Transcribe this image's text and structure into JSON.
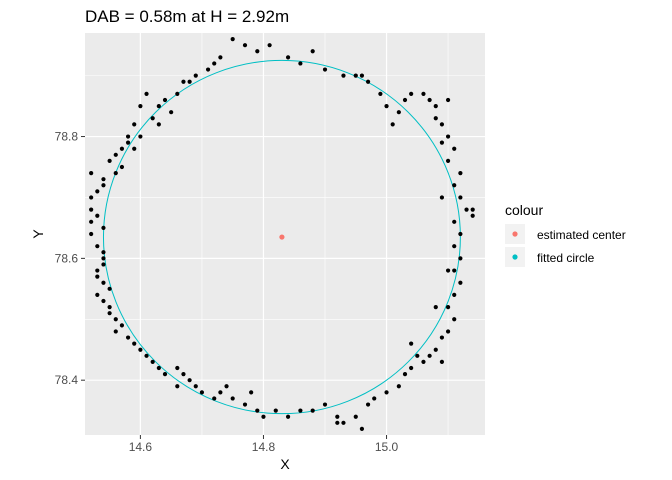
{
  "chart_data": {
    "type": "scatter",
    "title": "DAB = 0.58m at H = 2.92m",
    "xlabel": "X",
    "ylabel": "Y",
    "xlim": [
      14.51,
      15.16
    ],
    "ylim": [
      78.31,
      78.97
    ],
    "x_ticks": [
      {
        "value": 14.6,
        "label": "14.6"
      },
      {
        "value": 14.8,
        "label": "14.8"
      },
      {
        "value": 15.0,
        "label": "15.0"
      }
    ],
    "y_ticks": [
      {
        "value": 78.4,
        "label": "78.4"
      },
      {
        "value": 78.6,
        "label": "78.6"
      },
      {
        "value": 78.8,
        "label": "78.8"
      }
    ],
    "grid": true,
    "legend": {
      "title": "colour",
      "position": "right",
      "entries": [
        {
          "label": "estimated center",
          "color": "#F8766D"
        },
        {
          "label": "fitted circle",
          "color": "#00BFC4"
        }
      ]
    },
    "fitted_circle": {
      "center_x": 14.83,
      "center_y": 78.635,
      "radius": 0.29,
      "color": "#00BFC4"
    },
    "estimated_center": {
      "x": 14.83,
      "y": 78.635,
      "color": "#F8766D"
    },
    "points_color": "#000000",
    "points": [
      [
        14.75,
        78.96
      ],
      [
        14.77,
        78.95
      ],
      [
        14.79,
        78.94
      ],
      [
        14.81,
        78.95
      ],
      [
        14.84,
        78.93
      ],
      [
        14.86,
        78.92
      ],
      [
        14.88,
        78.94
      ],
      [
        14.9,
        78.91
      ],
      [
        14.93,
        78.9
      ],
      [
        14.95,
        78.9
      ],
      [
        14.73,
        78.93
      ],
      [
        14.72,
        78.92
      ],
      [
        14.71,
        78.91
      ],
      [
        14.69,
        78.9
      ],
      [
        14.68,
        78.89
      ],
      [
        14.67,
        78.89
      ],
      [
        14.66,
        78.87
      ],
      [
        14.64,
        78.86
      ],
      [
        14.63,
        78.85
      ],
      [
        14.65,
        78.84
      ],
      [
        14.62,
        78.83
      ],
      [
        14.61,
        78.87
      ],
      [
        14.6,
        78.85
      ],
      [
        14.59,
        78.82
      ],
      [
        14.58,
        78.8
      ],
      [
        14.58,
        78.79
      ],
      [
        14.57,
        78.78
      ],
      [
        14.56,
        78.77
      ],
      [
        14.55,
        78.76
      ],
      [
        14.56,
        78.74
      ],
      [
        14.54,
        78.73
      ],
      [
        14.54,
        78.72
      ],
      [
        14.53,
        78.71
      ],
      [
        14.52,
        78.74
      ],
      [
        14.52,
        78.7
      ],
      [
        14.52,
        78.68
      ],
      [
        14.53,
        78.67
      ],
      [
        14.52,
        78.66
      ],
      [
        14.54,
        78.65
      ],
      [
        14.52,
        78.64
      ],
      [
        14.53,
        78.62
      ],
      [
        14.54,
        78.61
      ],
      [
        14.54,
        78.6
      ],
      [
        14.54,
        78.59
      ],
      [
        14.53,
        78.58
      ],
      [
        14.53,
        78.57
      ],
      [
        14.54,
        78.56
      ],
      [
        14.55,
        78.55
      ],
      [
        14.53,
        78.54
      ],
      [
        14.54,
        78.53
      ],
      [
        14.55,
        78.52
      ],
      [
        14.55,
        78.51
      ],
      [
        14.56,
        78.5
      ],
      [
        14.57,
        78.49
      ],
      [
        14.56,
        78.48
      ],
      [
        14.58,
        78.47
      ],
      [
        14.59,
        78.46
      ],
      [
        14.6,
        78.45
      ],
      [
        14.61,
        78.44
      ],
      [
        14.62,
        78.43
      ],
      [
        14.63,
        78.42
      ],
      [
        14.64,
        78.41
      ],
      [
        14.66,
        78.42
      ],
      [
        14.67,
        78.41
      ],
      [
        14.68,
        78.4
      ],
      [
        14.69,
        78.39
      ],
      [
        14.7,
        78.38
      ],
      [
        14.72,
        78.37
      ],
      [
        14.73,
        78.38
      ],
      [
        14.75,
        78.37
      ],
      [
        14.77,
        78.36
      ],
      [
        14.79,
        78.35
      ],
      [
        14.8,
        78.34
      ],
      [
        14.82,
        78.35
      ],
      [
        14.84,
        78.34
      ],
      [
        14.86,
        78.35
      ],
      [
        14.88,
        78.35
      ],
      [
        14.9,
        78.36
      ],
      [
        14.92,
        78.34
      ],
      [
        14.93,
        78.33
      ],
      [
        14.95,
        78.34
      ],
      [
        14.96,
        78.32
      ],
      [
        14.97,
        78.36
      ],
      [
        14.98,
        78.37
      ],
      [
        15.0,
        78.38
      ],
      [
        15.02,
        78.39
      ],
      [
        15.03,
        78.41
      ],
      [
        15.04,
        78.42
      ],
      [
        15.06,
        78.43
      ],
      [
        15.07,
        78.44
      ],
      [
        15.08,
        78.45
      ],
      [
        15.09,
        78.47
      ],
      [
        15.1,
        78.48
      ],
      [
        15.11,
        78.5
      ],
      [
        15.1,
        78.52
      ],
      [
        15.11,
        78.54
      ],
      [
        15.12,
        78.56
      ],
      [
        15.11,
        78.58
      ],
      [
        15.12,
        78.6
      ],
      [
        15.11,
        78.62
      ],
      [
        15.12,
        78.64
      ],
      [
        15.11,
        78.66
      ],
      [
        15.13,
        78.68
      ],
      [
        15.12,
        78.7
      ],
      [
        15.11,
        78.72
      ],
      [
        15.12,
        78.74
      ],
      [
        15.1,
        78.76
      ],
      [
        15.11,
        78.78
      ],
      [
        15.1,
        78.8
      ],
      [
        15.09,
        78.82
      ],
      [
        15.08,
        78.83
      ],
      [
        15.08,
        78.85
      ],
      [
        15.07,
        78.86
      ],
      [
        15.06,
        78.87
      ],
      [
        15.04,
        78.87
      ],
      [
        15.03,
        78.86
      ],
      [
        15.02,
        78.84
      ],
      [
        15.01,
        78.82
      ],
      [
        15.0,
        78.85
      ],
      [
        14.99,
        78.87
      ],
      [
        14.97,
        78.89
      ],
      [
        14.96,
        78.9
      ],
      [
        15.14,
        78.68
      ],
      [
        15.14,
        78.67
      ],
      [
        15.05,
        78.44
      ],
      [
        15.09,
        78.43
      ],
      [
        15.04,
        78.46
      ],
      [
        14.92,
        78.33
      ],
      [
        14.74,
        78.39
      ],
      [
        14.66,
        78.39
      ],
      [
        14.78,
        78.38
      ],
      [
        14.63,
        78.82
      ],
      [
        14.59,
        78.78
      ],
      [
        14.6,
        78.8
      ],
      [
        14.57,
        78.75
      ],
      [
        15.1,
        78.86
      ],
      [
        15.09,
        78.79
      ],
      [
        15.09,
        78.7
      ],
      [
        15.1,
        78.58
      ],
      [
        15.08,
        78.52
      ]
    ]
  }
}
